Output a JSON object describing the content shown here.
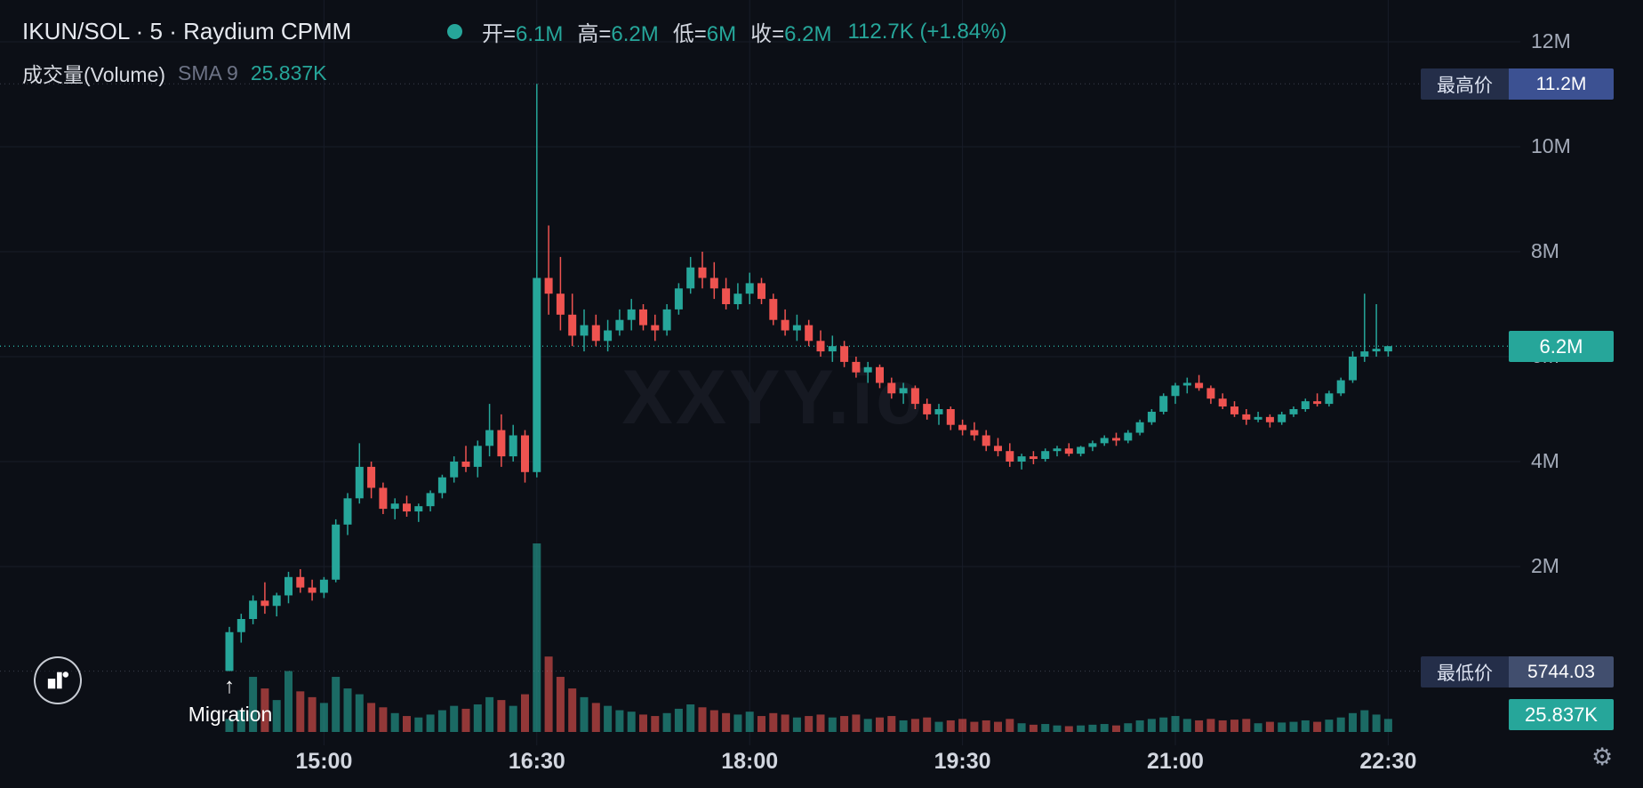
{
  "header": {
    "title": "IKUN/SOL · 5 · Raydium CPMM",
    "ohlc": {
      "open_label": "开=",
      "open_value": "6.1M",
      "high_label": "高=",
      "high_value": "6.2M",
      "low_label": "低=",
      "low_value": "6M",
      "close_label": "收=",
      "close_value": "6.2M",
      "change": "112.7K (+1.84%)"
    },
    "volume_row": {
      "label": "成交量(Volume)",
      "sma_label": "SMA 9",
      "sma_value": "25.837K"
    }
  },
  "price_scale": {
    "high_label": "最高价",
    "high_value": "11.2M",
    "low_label": "最低价",
    "low_value": "5744.03",
    "last_price": "6.2M",
    "volume_value": "25.837K"
  },
  "annotations": {
    "watermark": "XXYY.io",
    "migration_arrow": "↑",
    "migration_text": "Migration"
  },
  "icons": {
    "settings_gear": "⚙"
  },
  "colors": {
    "background": "#0c0f16",
    "up": "#26a69a",
    "down": "#ef5350",
    "up_volume": "rgba(38,166,154,0.6)",
    "down_volume": "rgba(239,83,80,0.6)",
    "grid": "#171c28",
    "dashed_grey": "rgba(148,158,180,0.35)",
    "high_badge_value_bg": "#3c5192",
    "low_badge_value_bg": "#414e6e",
    "badge_label_bg": "#242e49",
    "price_badge_bg": "#26a69a",
    "status_dot": "#26a69a"
  },
  "chart_data": {
    "type": "candlestick",
    "title": "IKUN/SOL 5m Raydium CPMM",
    "price_unit": "M",
    "volume_unit": "K",
    "ylim_M": [
      0,
      12.4
    ],
    "y_ticks_M": [
      2,
      4,
      6,
      8,
      10,
      12
    ],
    "session_high_M": 11.2,
    "session_low": 5744.03,
    "last_price_M": 6.2,
    "last_change": "112.7K (+1.84%)",
    "volume_sma9_K": 25.837,
    "start_time": "14:20",
    "step_minutes": 5,
    "x_ticks": [
      {
        "label": "15:00",
        "index": 8
      },
      {
        "label": "16:30",
        "index": 26
      },
      {
        "label": "18:00",
        "index": 44
      },
      {
        "label": "19:30",
        "index": 62
      },
      {
        "label": "21:00",
        "index": 80
      },
      {
        "label": "22:30",
        "index": 98
      }
    ],
    "volume_max_K": 1300,
    "candles_ohlcv": [
      [
        0.01,
        0.85,
        0.006,
        0.75,
        90
      ],
      [
        0.75,
        1.1,
        0.55,
        1.0,
        150
      ],
      [
        1.0,
        1.45,
        0.9,
        1.35,
        380
      ],
      [
        1.35,
        1.7,
        1.1,
        1.25,
        300
      ],
      [
        1.25,
        1.5,
        1.05,
        1.45,
        220
      ],
      [
        1.45,
        1.9,
        1.3,
        1.8,
        420
      ],
      [
        1.8,
        1.95,
        1.5,
        1.6,
        280
      ],
      [
        1.6,
        1.75,
        1.35,
        1.5,
        240
      ],
      [
        1.5,
        1.8,
        1.4,
        1.75,
        200
      ],
      [
        1.75,
        2.9,
        1.7,
        2.8,
        380
      ],
      [
        2.8,
        3.4,
        2.6,
        3.3,
        300
      ],
      [
        3.3,
        4.35,
        3.2,
        3.9,
        260
      ],
      [
        3.9,
        4.0,
        3.3,
        3.5,
        200
      ],
      [
        3.5,
        3.6,
        3.0,
        3.1,
        170
      ],
      [
        3.1,
        3.3,
        2.9,
        3.2,
        130
      ],
      [
        3.2,
        3.35,
        2.95,
        3.05,
        110
      ],
      [
        3.05,
        3.2,
        2.85,
        3.15,
        100
      ],
      [
        3.15,
        3.45,
        3.05,
        3.4,
        120
      ],
      [
        3.4,
        3.75,
        3.3,
        3.7,
        150
      ],
      [
        3.7,
        4.1,
        3.6,
        4.0,
        180
      ],
      [
        4.0,
        4.3,
        3.8,
        3.9,
        160
      ],
      [
        3.9,
        4.4,
        3.7,
        4.3,
        190
      ],
      [
        4.3,
        5.1,
        4.1,
        4.6,
        240
      ],
      [
        4.6,
        4.9,
        3.9,
        4.1,
        220
      ],
      [
        4.1,
        4.7,
        4.0,
        4.5,
        180
      ],
      [
        4.5,
        4.6,
        3.6,
        3.8,
        260
      ],
      [
        3.8,
        11.2,
        3.7,
        7.5,
        1300
      ],
      [
        7.5,
        8.5,
        6.8,
        7.2,
        520
      ],
      [
        7.2,
        7.9,
        6.5,
        6.8,
        380
      ],
      [
        6.8,
        7.2,
        6.2,
        6.4,
        300
      ],
      [
        6.4,
        6.9,
        6.1,
        6.6,
        240
      ],
      [
        6.6,
        6.8,
        6.2,
        6.3,
        200
      ],
      [
        6.3,
        6.7,
        6.1,
        6.5,
        180
      ],
      [
        6.5,
        6.9,
        6.4,
        6.7,
        150
      ],
      [
        6.7,
        7.1,
        6.5,
        6.9,
        140
      ],
      [
        6.9,
        7.0,
        6.5,
        6.6,
        120
      ],
      [
        6.6,
        6.8,
        6.3,
        6.5,
        110
      ],
      [
        6.5,
        7.0,
        6.4,
        6.9,
        130
      ],
      [
        6.9,
        7.4,
        6.8,
        7.3,
        160
      ],
      [
        7.3,
        7.9,
        7.2,
        7.7,
        190
      ],
      [
        7.7,
        8.0,
        7.3,
        7.5,
        170
      ],
      [
        7.5,
        7.8,
        7.1,
        7.3,
        150
      ],
      [
        7.3,
        7.5,
        6.9,
        7.0,
        130
      ],
      [
        7.0,
        7.4,
        6.9,
        7.2,
        120
      ],
      [
        7.2,
        7.6,
        7.0,
        7.4,
        140
      ],
      [
        7.4,
        7.5,
        7.0,
        7.1,
        110
      ],
      [
        7.1,
        7.2,
        6.6,
        6.7,
        130
      ],
      [
        6.7,
        6.9,
        6.4,
        6.5,
        120
      ],
      [
        6.5,
        6.8,
        6.3,
        6.6,
        100
      ],
      [
        6.6,
        6.7,
        6.2,
        6.3,
        110
      ],
      [
        6.3,
        6.5,
        6.0,
        6.1,
        120
      ],
      [
        6.1,
        6.4,
        5.9,
        6.2,
        100
      ],
      [
        6.2,
        6.3,
        5.8,
        5.9,
        110
      ],
      [
        5.9,
        6.0,
        5.6,
        5.7,
        120
      ],
      [
        5.7,
        5.9,
        5.5,
        5.8,
        90
      ],
      [
        5.8,
        5.85,
        5.4,
        5.5,
        100
      ],
      [
        5.5,
        5.6,
        5.2,
        5.3,
        110
      ],
      [
        5.3,
        5.5,
        5.1,
        5.4,
        80
      ],
      [
        5.4,
        5.45,
        5.0,
        5.1,
        90
      ],
      [
        5.1,
        5.2,
        4.8,
        4.9,
        100
      ],
      [
        4.9,
        5.1,
        4.7,
        5.0,
        70
      ],
      [
        5.0,
        5.05,
        4.6,
        4.7,
        80
      ],
      [
        4.7,
        4.8,
        4.5,
        4.6,
        90
      ],
      [
        4.6,
        4.75,
        4.4,
        4.5,
        70
      ],
      [
        4.5,
        4.6,
        4.2,
        4.3,
        80
      ],
      [
        4.3,
        4.45,
        4.1,
        4.2,
        70
      ],
      [
        4.2,
        4.35,
        3.9,
        4.0,
        90
      ],
      [
        4.0,
        4.15,
        3.85,
        4.1,
        60
      ],
      [
        4.1,
        4.2,
        3.95,
        4.05,
        50
      ],
      [
        4.05,
        4.25,
        4.0,
        4.2,
        55
      ],
      [
        4.2,
        4.3,
        4.1,
        4.25,
        45
      ],
      [
        4.25,
        4.35,
        4.1,
        4.15,
        40
      ],
      [
        4.15,
        4.3,
        4.1,
        4.28,
        45
      ],
      [
        4.28,
        4.4,
        4.2,
        4.35,
        50
      ],
      [
        4.35,
        4.5,
        4.3,
        4.45,
        55
      ],
      [
        4.45,
        4.55,
        4.3,
        4.4,
        45
      ],
      [
        4.4,
        4.6,
        4.35,
        4.55,
        60
      ],
      [
        4.55,
        4.8,
        4.5,
        4.75,
        80
      ],
      [
        4.75,
        5.0,
        4.7,
        4.95,
        90
      ],
      [
        4.95,
        5.3,
        4.9,
        5.25,
        100
      ],
      [
        5.25,
        5.5,
        5.1,
        5.45,
        110
      ],
      [
        5.45,
        5.6,
        5.3,
        5.5,
        90
      ],
      [
        5.5,
        5.65,
        5.35,
        5.4,
        80
      ],
      [
        5.4,
        5.45,
        5.1,
        5.2,
        90
      ],
      [
        5.2,
        5.3,
        5.0,
        5.05,
        80
      ],
      [
        5.05,
        5.15,
        4.85,
        4.9,
        85
      ],
      [
        4.9,
        5.0,
        4.7,
        4.8,
        90
      ],
      [
        4.8,
        4.95,
        4.75,
        4.85,
        60
      ],
      [
        4.85,
        4.9,
        4.65,
        4.75,
        70
      ],
      [
        4.75,
        4.95,
        4.7,
        4.9,
        65
      ],
      [
        4.9,
        5.05,
        4.85,
        5.0,
        70
      ],
      [
        5.0,
        5.2,
        4.95,
        5.15,
        80
      ],
      [
        5.15,
        5.3,
        5.05,
        5.1,
        70
      ],
      [
        5.1,
        5.35,
        5.05,
        5.3,
        85
      ],
      [
        5.3,
        5.6,
        5.25,
        5.55,
        100
      ],
      [
        5.55,
        6.1,
        5.5,
        6.0,
        130
      ],
      [
        6.0,
        7.2,
        5.9,
        6.1,
        150
      ],
      [
        6.1,
        7.0,
        6.0,
        6.15,
        120
      ],
      [
        6.1,
        6.2,
        6.0,
        6.2,
        90
      ]
    ]
  }
}
